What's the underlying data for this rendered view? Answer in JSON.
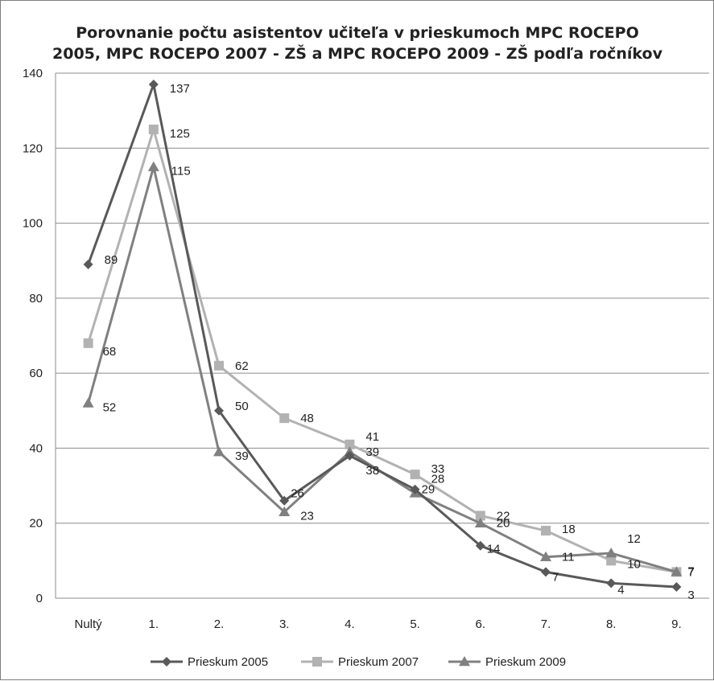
{
  "chart_data": {
    "type": "line",
    "title_lines": [
      "Porovnanie počtu asistentov učiteľa v prieskumoch MPC ROCEPO",
      "2005, MPC ROCEPO 2007 - ZŠ a MPC ROCEPO 2009 - ZŠ podľa ročníkov"
    ],
    "categories": [
      "Nultý",
      "1.",
      "2.",
      "3.",
      "4.",
      "5.",
      "6.",
      "7.",
      "8.",
      "9."
    ],
    "ylim": [
      0,
      140
    ],
    "yticks": [
      0,
      20,
      40,
      60,
      80,
      100,
      120,
      140
    ],
    "grid": true,
    "legend_position": "bottom",
    "series": [
      {
        "name": "Prieskum 2005",
        "color": "#595959",
        "marker": "diamond",
        "values": [
          89,
          137,
          50,
          26,
          38,
          29,
          14,
          7,
          4,
          3
        ]
      },
      {
        "name": "Prieskum 2007",
        "color": "#b2b2b2",
        "marker": "square",
        "values": [
          68,
          125,
          62,
          48,
          41,
          33,
          22,
          18,
          10,
          7
        ]
      },
      {
        "name": "Prieskum 2009",
        "color": "#808080",
        "marker": "triangle",
        "values": [
          52,
          115,
          39,
          23,
          39,
          28,
          20,
          11,
          12,
          7
        ]
      }
    ]
  }
}
